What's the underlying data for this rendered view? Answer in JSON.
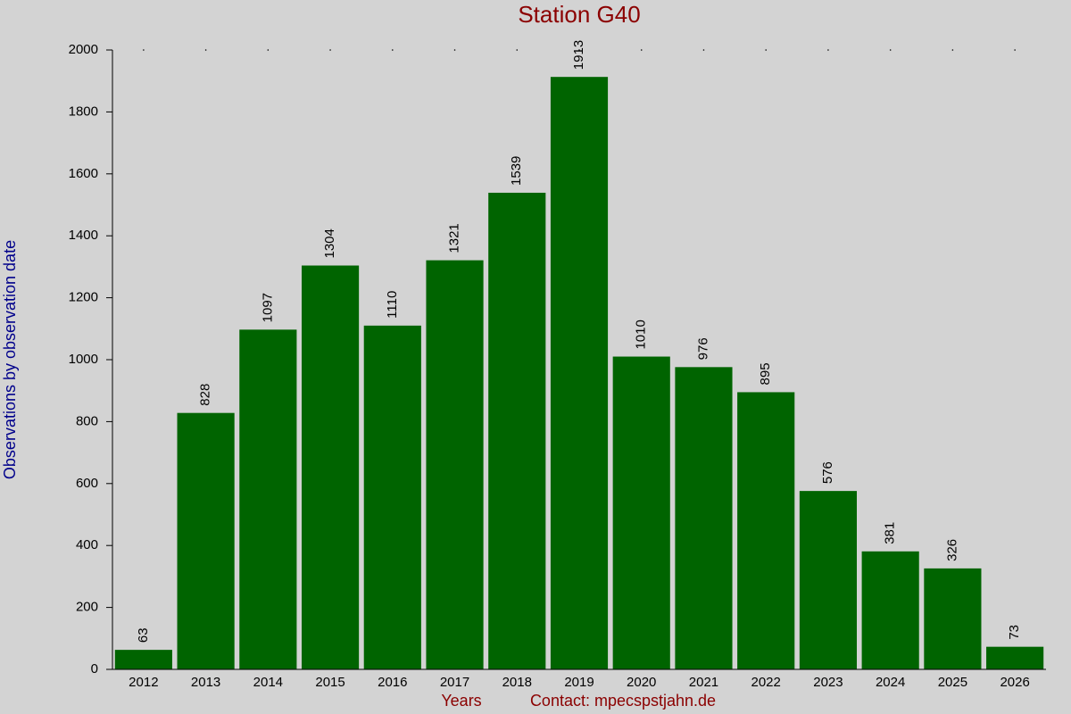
{
  "chart_data": {
    "type": "bar",
    "title": "Station G40",
    "y_label": "Observations by observation date",
    "x_label": "Years",
    "annotation": "Contact: mpecspstjahn.de",
    "categories": [
      "2012",
      "2013",
      "2014",
      "2015",
      "2016",
      "2017",
      "2018",
      "2019",
      "2020",
      "2021",
      "2022",
      "2023",
      "2024",
      "2025",
      "2026"
    ],
    "values": [
      63,
      828,
      1097,
      1304,
      1110,
      1321,
      1539,
      1913,
      1010,
      976,
      895,
      576,
      381,
      326,
      73
    ],
    "color": "#006400",
    "ylim": [
      0,
      2000
    ],
    "yticks": [
      0,
      200,
      400,
      600,
      800,
      1000,
      1200,
      1400,
      1600,
      1800,
      2000
    ],
    "value_labels_shown": true
  }
}
